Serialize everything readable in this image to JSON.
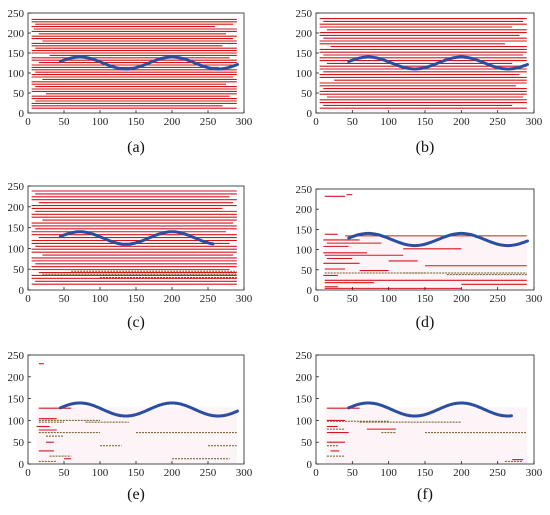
{
  "chart_data": [
    {
      "type": "line",
      "caption": "(a)",
      "xlim": [
        0,
        300
      ],
      "ylim": [
        0,
        250
      ],
      "xticks": [
        0,
        50,
        100,
        150,
        200,
        250,
        300
      ],
      "yticks": [
        0,
        50,
        100,
        150,
        200,
        250
      ],
      "curve": {
        "color": "#2a4fa0",
        "x_start": 45,
        "x_end": 292,
        "center": 125,
        "amplitude": 15,
        "period": 128,
        "phase_x": 40
      },
      "segment_color": "#d4161c",
      "segments": [
        [
          5,
          290,
          234
        ],
        [
          5,
          290,
          228
        ],
        [
          10,
          285,
          222
        ],
        [
          5,
          260,
          216
        ],
        [
          8,
          290,
          210
        ],
        [
          5,
          290,
          204
        ],
        [
          15,
          275,
          198
        ],
        [
          5,
          290,
          192
        ],
        [
          5,
          285,
          186
        ],
        [
          20,
          290,
          180
        ],
        [
          5,
          290,
          174
        ],
        [
          5,
          270,
          168
        ],
        [
          10,
          290,
          162
        ],
        [
          5,
          290,
          156
        ],
        [
          5,
          290,
          150
        ],
        [
          30,
          290,
          144
        ],
        [
          5,
          280,
          138
        ],
        [
          5,
          290,
          132
        ],
        [
          15,
          290,
          126
        ],
        [
          5,
          290,
          120
        ],
        [
          5,
          265,
          114
        ],
        [
          5,
          290,
          108
        ],
        [
          10,
          290,
          102
        ],
        [
          5,
          290,
          96
        ],
        [
          5,
          285,
          90
        ],
        [
          20,
          290,
          84
        ],
        [
          5,
          290,
          78
        ],
        [
          5,
          275,
          72
        ],
        [
          10,
          290,
          66
        ],
        [
          5,
          290,
          60
        ],
        [
          5,
          290,
          54
        ],
        [
          25,
          290,
          48
        ],
        [
          5,
          280,
          42
        ],
        [
          5,
          290,
          36
        ],
        [
          10,
          290,
          30
        ],
        [
          5,
          290,
          24
        ],
        [
          5,
          270,
          18
        ],
        [
          5,
          290,
          12
        ]
      ]
    },
    {
      "type": "line",
      "caption": "(b)",
      "xlim": [
        0,
        300
      ],
      "ylim": [
        0,
        250
      ],
      "xticks": [
        0,
        50,
        100,
        150,
        200,
        250,
        300
      ],
      "yticks": [
        0,
        50,
        100,
        150,
        200,
        250
      ],
      "curve": {
        "color": "#2a4fa0",
        "x_start": 45,
        "x_end": 292,
        "center": 125,
        "amplitude": 15,
        "period": 128,
        "phase_x": 40
      },
      "segment_color": "#d4161c",
      "segments": [
        [
          5,
          290,
          236
        ],
        [
          10,
          285,
          229
        ],
        [
          5,
          290,
          222
        ],
        [
          5,
          270,
          215
        ],
        [
          15,
          290,
          208
        ],
        [
          5,
          290,
          201
        ],
        [
          5,
          280,
          194
        ],
        [
          10,
          290,
          187
        ],
        [
          5,
          290,
          180
        ],
        [
          5,
          260,
          173
        ],
        [
          20,
          290,
          166
        ],
        [
          5,
          290,
          159
        ],
        [
          5,
          290,
          152
        ],
        [
          10,
          285,
          145
        ],
        [
          5,
          290,
          138
        ],
        [
          5,
          290,
          131
        ],
        [
          15,
          270,
          124
        ],
        [
          5,
          290,
          117
        ],
        [
          5,
          290,
          110
        ],
        [
          10,
          290,
          103
        ],
        [
          5,
          280,
          96
        ],
        [
          5,
          290,
          89
        ],
        [
          25,
          290,
          82
        ],
        [
          5,
          290,
          75
        ],
        [
          5,
          275,
          68
        ],
        [
          10,
          290,
          61
        ],
        [
          5,
          290,
          54
        ],
        [
          5,
          290,
          47
        ],
        [
          15,
          285,
          40
        ],
        [
          5,
          290,
          33
        ],
        [
          5,
          290,
          26
        ],
        [
          10,
          270,
          19
        ],
        [
          5,
          290,
          12
        ]
      ]
    },
    {
      "type": "line",
      "caption": "(c)",
      "xlim": [
        0,
        300
      ],
      "ylim": [
        0,
        250
      ],
      "xticks": [
        0,
        50,
        100,
        150,
        200,
        250,
        300
      ],
      "yticks": [
        0,
        50,
        100,
        150,
        200,
        250
      ],
      "curve": {
        "color": "#2a4fa0",
        "x_start": 45,
        "x_end": 258,
        "center": 125,
        "amplitude": 15,
        "period": 128,
        "phase_x": 40
      },
      "segment_color": "#d4161c",
      "segments": [
        [
          5,
          290,
          238
        ],
        [
          10,
          290,
          231
        ],
        [
          5,
          280,
          224
        ],
        [
          5,
          290,
          217
        ],
        [
          15,
          285,
          210
        ],
        [
          5,
          290,
          203
        ],
        [
          5,
          270,
          196
        ],
        [
          10,
          290,
          189
        ],
        [
          5,
          290,
          182
        ],
        [
          5,
          290,
          175
        ],
        [
          20,
          290,
          168
        ],
        [
          5,
          285,
          161
        ],
        [
          5,
          290,
          154
        ],
        [
          10,
          290,
          147
        ],
        [
          5,
          275,
          140
        ],
        [
          5,
          290,
          133
        ],
        [
          15,
          290,
          126
        ],
        [
          5,
          290,
          119
        ],
        [
          5,
          280,
          112
        ],
        [
          10,
          290,
          105
        ],
        [
          5,
          290,
          98
        ],
        [
          5,
          290,
          91
        ],
        [
          20,
          285,
          84
        ],
        [
          5,
          290,
          77
        ],
        [
          5,
          290,
          70
        ],
        [
          10,
          290,
          63
        ],
        [
          5,
          290,
          56
        ],
        [
          5,
          280,
          49
        ],
        [
          15,
          290,
          42
        ],
        [
          5,
          290,
          35
        ],
        [
          5,
          290,
          28
        ],
        [
          10,
          290,
          21
        ],
        [
          5,
          290,
          14
        ]
      ],
      "dark_color": "#6a5a20",
      "dark_segments": [
        [
          60,
          290,
          45
        ],
        [
          20,
          290,
          38
        ],
        [
          100,
          290,
          30
        ]
      ]
    },
    {
      "type": "line",
      "caption": "(d)",
      "xlim": [
        0,
        300
      ],
      "ylim": [
        0,
        250
      ],
      "xticks": [
        0,
        50,
        100,
        150,
        200,
        250,
        300
      ],
      "yticks": [
        0,
        50,
        100,
        150,
        200,
        250
      ],
      "curve": {
        "color": "#2a4fa0",
        "x_start": 45,
        "x_end": 292,
        "center": 125,
        "amplitude": 15,
        "period": 128,
        "phase_x": 40
      },
      "segment_color": "#d4161c",
      "segments": [
        [
          12,
          40,
          232
        ],
        [
          42,
          50,
          236
        ],
        [
          12,
          30,
          138
        ],
        [
          40,
          290,
          134
        ],
        [
          10,
          60,
          124
        ],
        [
          15,
          90,
          116
        ],
        [
          10,
          45,
          108
        ],
        [
          120,
          200,
          102
        ],
        [
          10,
          70,
          92
        ],
        [
          12,
          120,
          86
        ],
        [
          15,
          50,
          78
        ],
        [
          100,
          140,
          72
        ],
        [
          10,
          60,
          66
        ],
        [
          150,
          290,
          60
        ],
        [
          12,
          40,
          52
        ],
        [
          60,
          100,
          48
        ],
        [
          10,
          30,
          36
        ],
        [
          12,
          290,
          24
        ],
        [
          12,
          80,
          18
        ],
        [
          200,
          290,
          14
        ],
        [
          12,
          30,
          8
        ],
        [
          12,
          200,
          4
        ]
      ],
      "dark_color": "#6a5a20",
      "dark_segments": [
        [
          12,
          150,
          42
        ],
        [
          120,
          290,
          42
        ],
        [
          180,
          290,
          38
        ]
      ]
    },
    {
      "type": "line",
      "caption": "(e)",
      "xlim": [
        0,
        300
      ],
      "ylim": [
        0,
        250
      ],
      "xticks": [
        0,
        50,
        100,
        150,
        200,
        250,
        300
      ],
      "yticks": [
        0,
        50,
        100,
        150,
        200,
        250
      ],
      "curve": {
        "color": "#2a4fa0",
        "x_start": 45,
        "x_end": 292,
        "center": 125,
        "amplitude": 15,
        "period": 128,
        "phase_x": 40
      },
      "segment_color": "#d4161c",
      "segments": [
        [
          15,
          22,
          230
        ],
        [
          15,
          60,
          128
        ],
        [
          15,
          40,
          104
        ],
        [
          12,
          30,
          86
        ],
        [
          15,
          40,
          78
        ],
        [
          25,
          36,
          50
        ],
        [
          15,
          36,
          30
        ],
        [
          50,
          60,
          12
        ]
      ],
      "dark_color": "#6a5a20",
      "dark_segments": [
        [
          15,
          100,
          100
        ],
        [
          15,
          50,
          96
        ],
        [
          80,
          140,
          96
        ],
        [
          15,
          100,
          72
        ],
        [
          25,
          50,
          64
        ],
        [
          150,
          290,
          72
        ],
        [
          100,
          130,
          42
        ],
        [
          250,
          290,
          42
        ],
        [
          30,
          60,
          18
        ],
        [
          200,
          280,
          12
        ],
        [
          15,
          40,
          6
        ]
      ]
    },
    {
      "type": "line",
      "caption": "(f)",
      "xlim": [
        0,
        300
      ],
      "ylim": [
        0,
        250
      ],
      "xticks": [
        0,
        50,
        100,
        150,
        200,
        250,
        300
      ],
      "yticks": [
        0,
        50,
        100,
        150,
        200,
        250
      ],
      "curve": {
        "color": "#2a4fa0",
        "x_start": 45,
        "x_end": 270,
        "center": 125,
        "amplitude": 15,
        "period": 128,
        "phase_x": 40
      },
      "segment_color": "#d4161c",
      "segments": [
        [
          15,
          60,
          128
        ],
        [
          15,
          40,
          100
        ],
        [
          15,
          30,
          86
        ],
        [
          70,
          110,
          80
        ],
        [
          15,
          45,
          72
        ],
        [
          15,
          40,
          50
        ],
        [
          20,
          32,
          30
        ],
        [
          270,
          285,
          10
        ]
      ],
      "dark_color": "#6a5a20",
      "dark_segments": [
        [
          15,
          100,
          98
        ],
        [
          60,
          200,
          96
        ],
        [
          15,
          40,
          80
        ],
        [
          90,
          110,
          72
        ],
        [
          150,
          290,
          72
        ],
        [
          15,
          30,
          42
        ],
        [
          15,
          40,
          18
        ],
        [
          260,
          285,
          6
        ]
      ]
    }
  ]
}
